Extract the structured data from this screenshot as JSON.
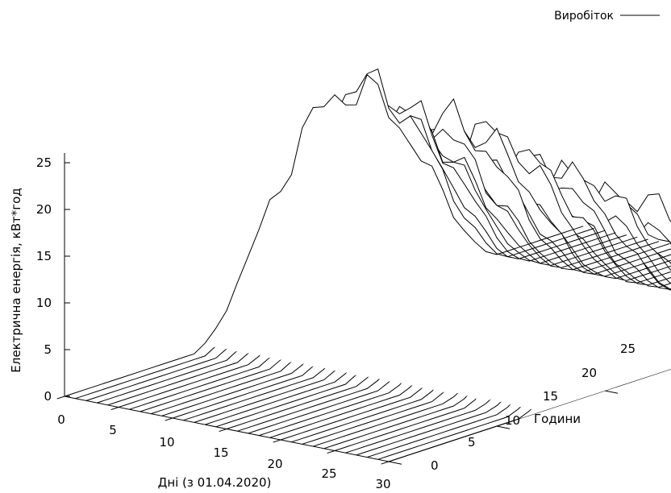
{
  "chart_data": {
    "type": "surface-3d",
    "title": "",
    "xlabel": "Дні (з 01.04.2020)",
    "ylabel": "Години",
    "zlabel": "Електрична енергія, кВт*год",
    "x_ticks": [
      "0",
      "5",
      "10",
      "15",
      "20",
      "25",
      "30"
    ],
    "y_ticks": [
      "0",
      "5",
      "10",
      "15",
      "20",
      "25"
    ],
    "z_ticks": [
      "0",
      "5",
      "10",
      "15",
      "20",
      "25"
    ],
    "xlim": [
      0,
      30
    ],
    "ylim": [
      0,
      25
    ],
    "zlim": [
      0,
      25
    ],
    "legend": {
      "position": "top-right",
      "label": "Виробіток"
    },
    "series": [
      {
        "name": "Виробіток",
        "sunrise_hour": 6,
        "sunset_hour": 20,
        "daily_peak_kwh": [
          22.8,
          23.5,
          21.8,
          22.2,
          21.0,
          19.5,
          20.5,
          18.0,
          21.5,
          19.0,
          20.8,
          17.5,
          21.0,
          17.8,
          19.5,
          16.8,
          18.0,
          19.2,
          15.2,
          16.5,
          18.2,
          15.5,
          16.8,
          12.8,
          14.5,
          17.2,
          11.5,
          12.0,
          13.5,
          14.2,
          15.8
        ]
      }
    ]
  }
}
